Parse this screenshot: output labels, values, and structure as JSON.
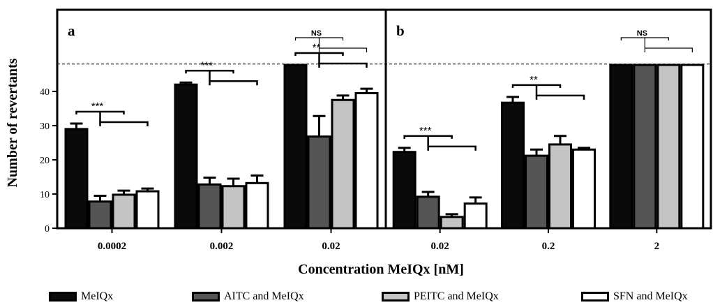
{
  "chart_data": {
    "type": "bar",
    "ylabel": "Number of revertants",
    "xlabel": "Concentration MeIQx [nM]",
    "ylim": [
      0,
      52
    ],
    "yticks": [
      0,
      10,
      20,
      30,
      40
    ],
    "reference_line": 48,
    "grid": false,
    "legend_position": "bottom",
    "series_names": [
      "MeIQx",
      "AITC and MeIQx",
      "PEITC and MeIQx",
      "SFN and MeIQx"
    ],
    "series_colors": [
      "#0a0a0a",
      "#555555",
      "#c4c4c4",
      "#ffffff"
    ],
    "panels": [
      {
        "label": "a",
        "categories": [
          "0.0002",
          "0.002",
          "0.02"
        ],
        "series": [
          {
            "name": "MeIQx",
            "values": [
              29,
              42,
              48
            ],
            "errors": [
              1.6,
              0.6,
              0
            ]
          },
          {
            "name": "AITC and MeIQx",
            "values": [
              7.8,
              12.8,
              26.8
            ],
            "errors": [
              1.7,
              2.0,
              6.0
            ]
          },
          {
            "name": "PEITC and MeIQx",
            "values": [
              9.8,
              12.3,
              37.5
            ],
            "errors": [
              1.2,
              2.2,
              1.3
            ]
          },
          {
            "name": "SFN and MeIQx",
            "values": [
              10.8,
              13.2,
              39.5
            ],
            "errors": [
              0.8,
              2.2,
              1.3
            ]
          }
        ],
        "significance": [
          {
            "category": 0,
            "label": "***"
          },
          {
            "category": 1,
            "label": "***"
          },
          {
            "category": 2,
            "label": "**"
          },
          {
            "category": 2,
            "label": "NS"
          }
        ]
      },
      {
        "label": "b",
        "categories": [
          "0.02",
          "0.2",
          "2"
        ],
        "series": [
          {
            "name": "MeIQx",
            "values": [
              22.3,
              36.7,
              48
            ],
            "errors": [
              1.2,
              1.7,
              0
            ]
          },
          {
            "name": "AITC and MeIQx",
            "values": [
              9.2,
              21.2,
              48
            ],
            "errors": [
              1.4,
              1.8,
              0
            ]
          },
          {
            "name": "PEITC and MeIQx",
            "values": [
              3.3,
              24.5,
              48
            ],
            "errors": [
              0.8,
              2.5,
              0
            ]
          },
          {
            "name": "SFN and MeIQx",
            "values": [
              7.2,
              23.0,
              48
            ],
            "errors": [
              1.8,
              0.5,
              0
            ]
          }
        ],
        "significance": [
          {
            "category": 0,
            "label": "***"
          },
          {
            "category": 1,
            "label": "**"
          },
          {
            "category": 2,
            "label": "NS"
          }
        ]
      }
    ]
  }
}
